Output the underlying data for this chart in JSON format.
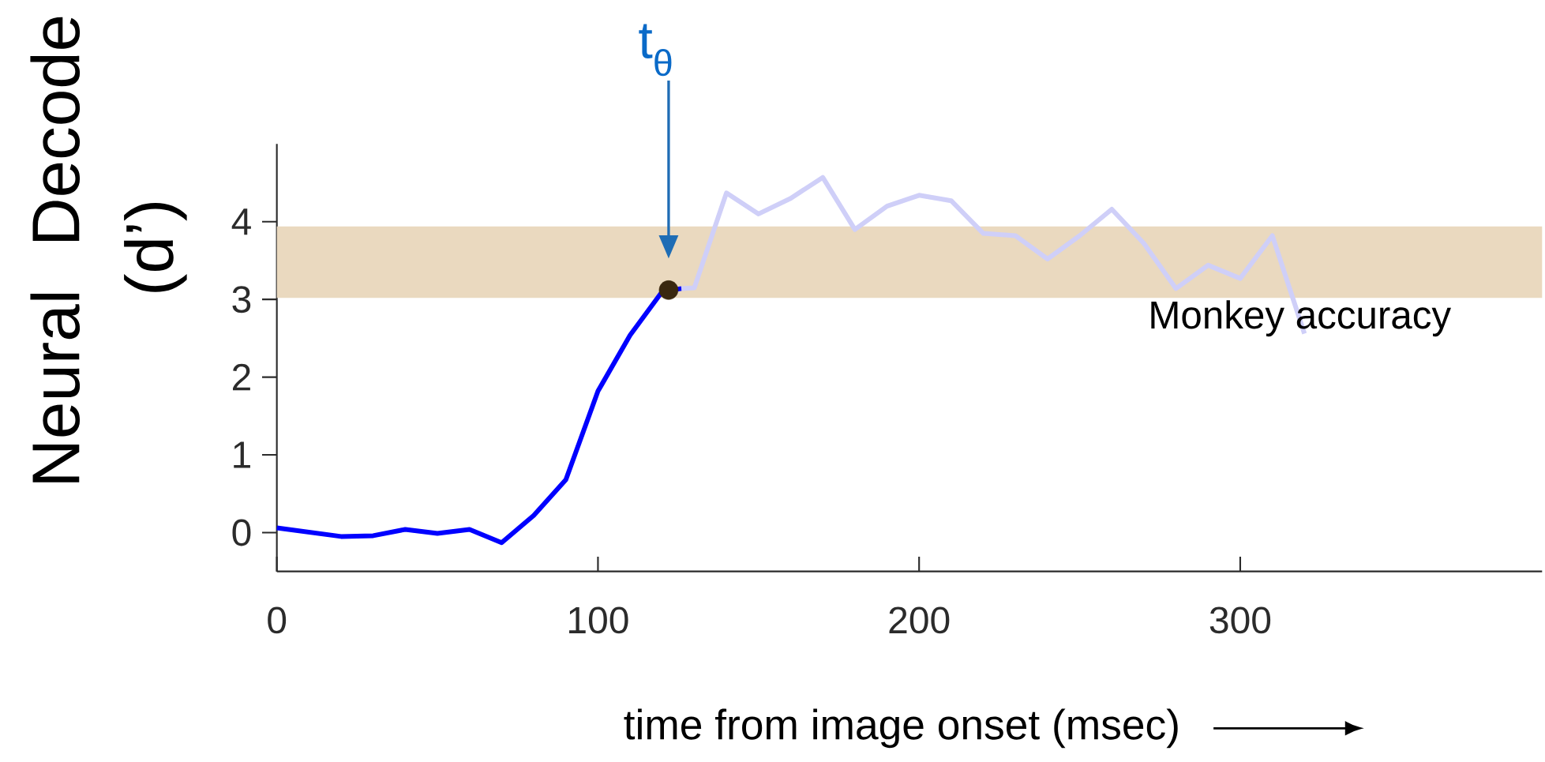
{
  "chart_data": {
    "type": "line",
    "xlabel": "time from image onset (msec)",
    "ylabel": "Neural Decode (d’)",
    "xlim": [
      0,
      394
    ],
    "ylim": [
      -0.5,
      5
    ],
    "xticks": [
      0,
      100,
      200,
      300
    ],
    "yticks": [
      0,
      1,
      2,
      3,
      4
    ],
    "grid": false,
    "line_style": "solid",
    "series": [
      {
        "type": "line",
        "color": "#0000ff",
        "x": [
          0,
          20,
          30,
          40,
          50,
          60,
          70,
          80,
          90,
          100,
          110,
          120,
          126
        ],
        "values": [
          0.06,
          -0.05,
          -0.04,
          0.04,
          -0.01,
          0.04,
          -0.13,
          0.22,
          0.68,
          1.82,
          2.54,
          3.1,
          3.14
        ]
      },
      {
        "type": "line",
        "color": "#cfcff8",
        "x": [
          126,
          130,
          140,
          150,
          160,
          170,
          180,
          190,
          200,
          210,
          220,
          230,
          240,
          250,
          260,
          270,
          280,
          290,
          300,
          310,
          320
        ],
        "values": [
          3.14,
          3.15,
          4.37,
          4.1,
          4.3,
          4.57,
          3.9,
          4.2,
          4.34,
          4.27,
          3.85,
          3.82,
          3.52,
          3.82,
          4.16,
          3.72,
          3.14,
          3.44,
          3.27,
          3.82,
          2.56
        ]
      },
      {
        "type": "scatter",
        "color": "#3a2810",
        "x": [
          122
        ],
        "values": [
          3.12
        ]
      }
    ],
    "bands": [
      {
        "axis": "y",
        "from": 3.02,
        "to": 3.94,
        "label": "Monkey accuracy",
        "color": "#ead9bf"
      }
    ],
    "annotations": [
      "t$_{θ}$"
    ]
  }
}
